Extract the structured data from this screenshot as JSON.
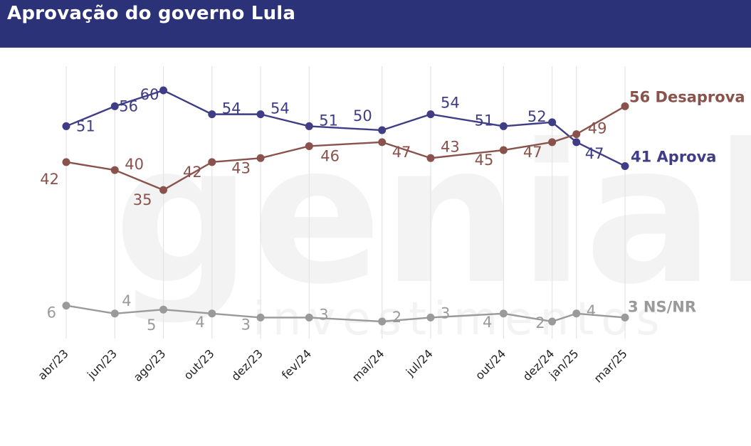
{
  "header": {
    "title": "Aprovação do governo Lula"
  },
  "watermark": {
    "brand": "genial",
    "sub": "investimentos"
  },
  "colors": {
    "header_bg": "#2c3278",
    "aprova": "#3f3d86",
    "desaprova": "#8a524c",
    "nsnr": "#9a9a9a",
    "grid": "#e4e4e4"
  },
  "chart_data": {
    "type": "line",
    "title": "Aprovação do governo Lula",
    "xlabel": "",
    "ylabel": "",
    "ylim": [
      0,
      62
    ],
    "grid": "vertical",
    "categories": [
      "abr/23",
      "jun/23",
      "ago/23",
      "out/23",
      "dez/23",
      "fev/24",
      "mai/24",
      "jul/24",
      "out/24",
      "dez/24",
      "jan/25",
      "mar/25"
    ],
    "x_months": [
      0,
      2,
      4,
      6,
      8,
      10,
      13,
      15,
      18,
      20,
      21,
      23
    ],
    "series": [
      {
        "name": "Aprova",
        "end_label": "41 Aprova",
        "color": "#3f3d86",
        "values": [
          51,
          56,
          60,
          54,
          54,
          51,
          50,
          54,
          51,
          52,
          47,
          41
        ]
      },
      {
        "name": "Desaprova",
        "end_label": "56 Desaprova",
        "color": "#8a524c",
        "values": [
          42,
          40,
          35,
          42,
          43,
          46,
          47,
          43,
          45,
          47,
          49,
          56
        ]
      },
      {
        "name": "NS/NR",
        "end_label": "3 NS/NR",
        "color": "#9a9a9a",
        "values": [
          6,
          4,
          5,
          4,
          3,
          3,
          2,
          3,
          4,
          2,
          4,
          3
        ]
      }
    ]
  }
}
